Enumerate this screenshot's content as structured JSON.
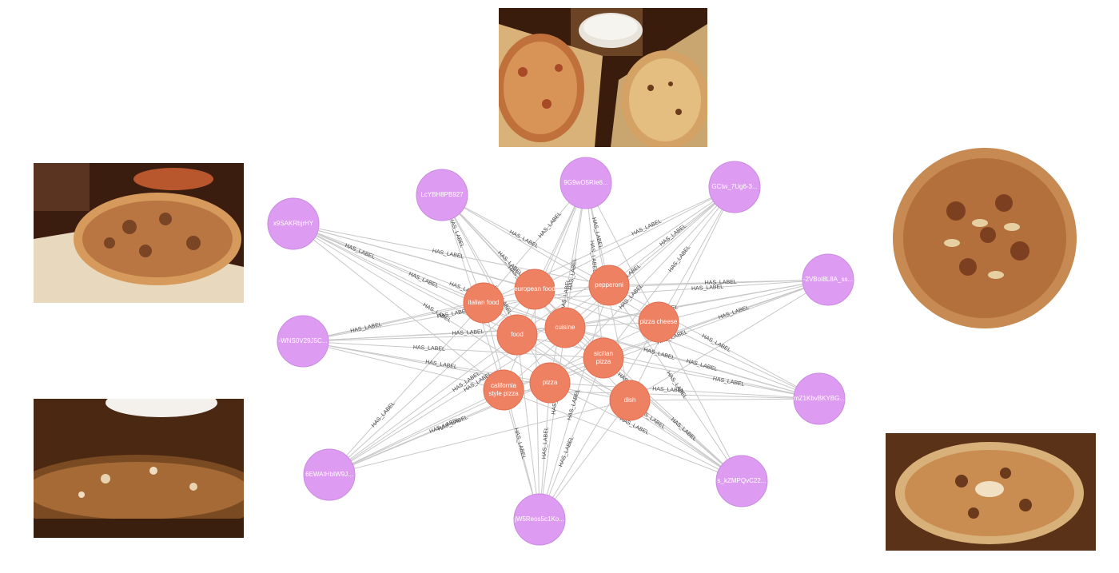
{
  "colors": {
    "image_node": "#dd9cf2",
    "image_node_stroke": "#c98be0",
    "label_node": "#ef8163",
    "label_node_stroke": "#e06f52",
    "edge": "#c8c8c8",
    "edge_label": "#444444"
  },
  "relationship_type": "HAS_LABEL",
  "image_nodes": [
    {
      "id": "img1",
      "caption": "x9SAKRbjrHY"
    },
    {
      "id": "img2",
      "caption": "LcYBH8PB927"
    },
    {
      "id": "img3",
      "caption": "9G9wO5RIe6..."
    },
    {
      "id": "img4",
      "caption": "GCtw_7Ug6-3..."
    },
    {
      "id": "img5",
      "caption": "-2VBoI8L8A_ss..."
    },
    {
      "id": "img6",
      "caption": "-WNS0V29J5C..."
    },
    {
      "id": "img7",
      "caption": "mZ1KbvBKYBG..."
    },
    {
      "id": "img8",
      "caption": "6EWAtHbIW9J..."
    },
    {
      "id": "img9",
      "caption": "jW5Reos5c1Ko..."
    },
    {
      "id": "img10",
      "caption": "s_kZMPQvC22..."
    }
  ],
  "label_nodes": [
    {
      "id": "italian",
      "caption": "italian food"
    },
    {
      "id": "european",
      "caption": "european food"
    },
    {
      "id": "pepperoni",
      "caption": "pepperoni"
    },
    {
      "id": "food",
      "caption": "food"
    },
    {
      "id": "cuisine",
      "caption": "cuisine"
    },
    {
      "id": "pizzacheese",
      "caption": "pizza cheese"
    },
    {
      "id": "sicilian",
      "caption": "sicilian pizza"
    },
    {
      "id": "california",
      "caption": "california style pizza"
    },
    {
      "id": "pizza",
      "caption": "pizza"
    },
    {
      "id": "dish",
      "caption": "dish"
    }
  ],
  "photos": [
    {
      "id": "photo-top",
      "description": "two pizzas in boxes with plates"
    },
    {
      "id": "photo-left-upper",
      "description": "pizza on wooden peel"
    },
    {
      "id": "photo-left-lower",
      "description": "close-up of pizza crust"
    },
    {
      "id": "photo-right-upper",
      "description": "round pizza top view"
    },
    {
      "id": "photo-right-lower",
      "description": "pizza in box"
    }
  ]
}
